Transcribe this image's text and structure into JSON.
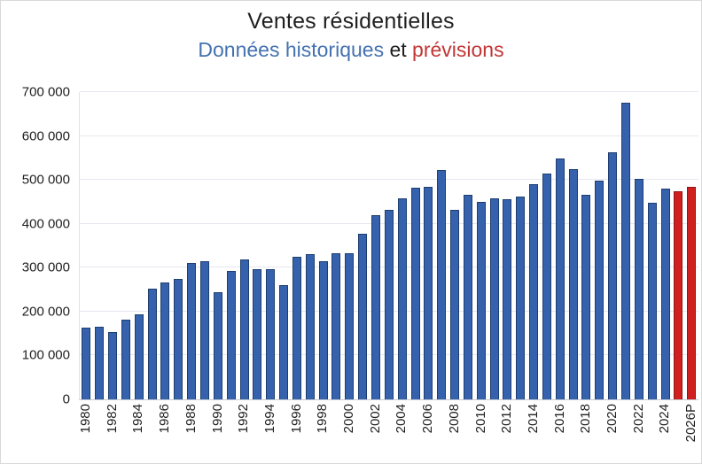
{
  "header": {
    "title": "Ventes résidentielles",
    "subtitle_full": "Données historiques et prévisions",
    "subtitle_part_historical": "Données historiques",
    "subtitle_part_connector": " et ",
    "subtitle_part_forecast": "prévisions"
  },
  "colors": {
    "historical_bar": "#3561ad",
    "historical_bar_border": "#1e3e6f",
    "forecast_bar": "#cf1f1f",
    "forecast_bar_border": "#8f1515",
    "subtitle_blue": "#4472b0",
    "subtitle_red": "#c23535",
    "title_text": "#1f1f1f",
    "gridline": "#e4e8f0"
  },
  "chart_data": {
    "type": "bar",
    "title": "Ventes résidentielles",
    "subtitle": "Données historiques et prévisions",
    "ylabel": "",
    "xlabel": "",
    "ylim": [
      0,
      700000
    ],
    "ytick_step": 100000,
    "ytick_labels": [
      "0",
      "100 000",
      "200 000",
      "300 000",
      "400 000",
      "500 000",
      "600 000",
      "700 000"
    ],
    "grid": true,
    "legend_position": "none",
    "forecast_start_year": 2025,
    "x": [
      1980,
      1981,
      1982,
      1983,
      1984,
      1985,
      1986,
      1987,
      1988,
      1989,
      1990,
      1991,
      1992,
      1993,
      1994,
      1995,
      1996,
      1997,
      1998,
      1999,
      2000,
      2001,
      2002,
      2003,
      2004,
      2005,
      2006,
      2007,
      2008,
      2009,
      2010,
      2011,
      2012,
      2013,
      2014,
      2015,
      2016,
      2017,
      2018,
      2019,
      2020,
      2021,
      2022,
      2023,
      2024,
      2025,
      2026
    ],
    "x_labels": [
      "1980",
      "",
      "1982",
      "",
      "1984",
      "",
      "1986",
      "",
      "1988",
      "",
      "1990",
      "",
      "1992",
      "",
      "1994",
      "",
      "1996",
      "",
      "1998",
      "",
      "2000",
      "",
      "2002",
      "",
      "2004",
      "",
      "2006",
      "",
      "2008",
      "",
      "2010",
      "",
      "2012",
      "",
      "2014",
      "",
      "2016",
      "",
      "2018",
      "",
      "2020",
      "",
      "2022",
      "",
      "2024",
      "",
      "2026P"
    ],
    "values": [
      163000,
      165000,
      154000,
      182000,
      193000,
      253000,
      266000,
      274000,
      310000,
      314000,
      244000,
      292000,
      318000,
      297000,
      297000,
      260000,
      324000,
      330000,
      314000,
      333000,
      332000,
      378000,
      420000,
      431000,
      457000,
      483000,
      484000,
      523000,
      432000,
      467000,
      450000,
      458000,
      455000,
      462000,
      490000,
      515000,
      549000,
      525000,
      467000,
      499000,
      563000,
      675000,
      503000,
      448000,
      481000,
      474000,
      485000
    ],
    "series_labels": {
      "historical": "Données historiques",
      "forecast": "prévisions"
    }
  }
}
